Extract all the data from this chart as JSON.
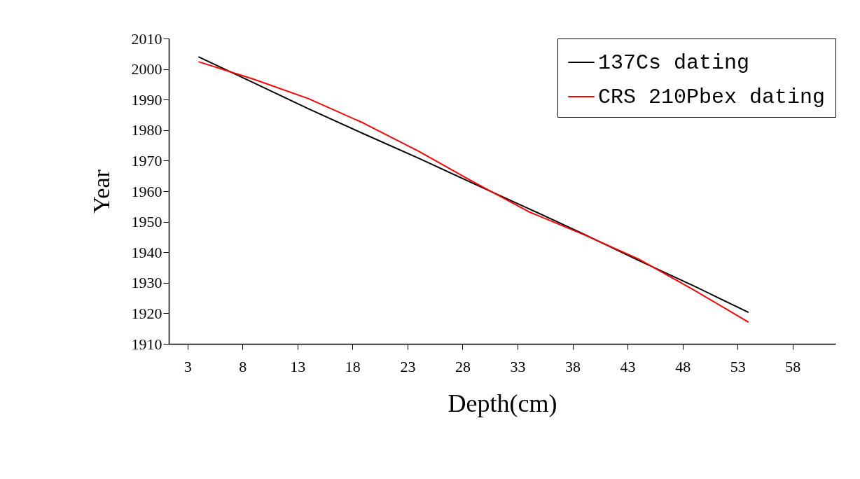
{
  "chart_data": {
    "type": "line",
    "xlabel": "Depth(cm)",
    "ylabel": "Year",
    "x": [
      4,
      9,
      14,
      19,
      24,
      29,
      34,
      39,
      44,
      49,
      54
    ],
    "series": [
      {
        "name": "137Cs dating",
        "color": "#000000",
        "values": [
          2004.0,
          1995.5,
          1987.0,
          1978.8,
          1970.8,
          1962.5,
          1954.3,
          1946.0,
          1937.3,
          1929.0,
          1920.3
        ]
      },
      {
        "name": "CRS 210Pbex dating",
        "color": "#ff0000",
        "values": [
          2002.4,
          1996.7,
          1990.3,
          1982.3,
          1973.1,
          1963.0,
          1953.3,
          1945.8,
          1937.8,
          1927.7,
          1917.1
        ]
      }
    ],
    "xlim": [
      1.3,
      61.9
    ],
    "xticks": [
      3,
      8,
      13,
      18,
      23,
      28,
      33,
      38,
      43,
      48,
      53,
      58
    ],
    "ylim": [
      1910,
      2010
    ],
    "yticks": [
      1910,
      1920,
      1930,
      1940,
      1950,
      1960,
      1970,
      1980,
      1990,
      2000,
      2010
    ],
    "grid": false,
    "legend": "top right",
    "marker": "none",
    "line_style": "solid"
  }
}
